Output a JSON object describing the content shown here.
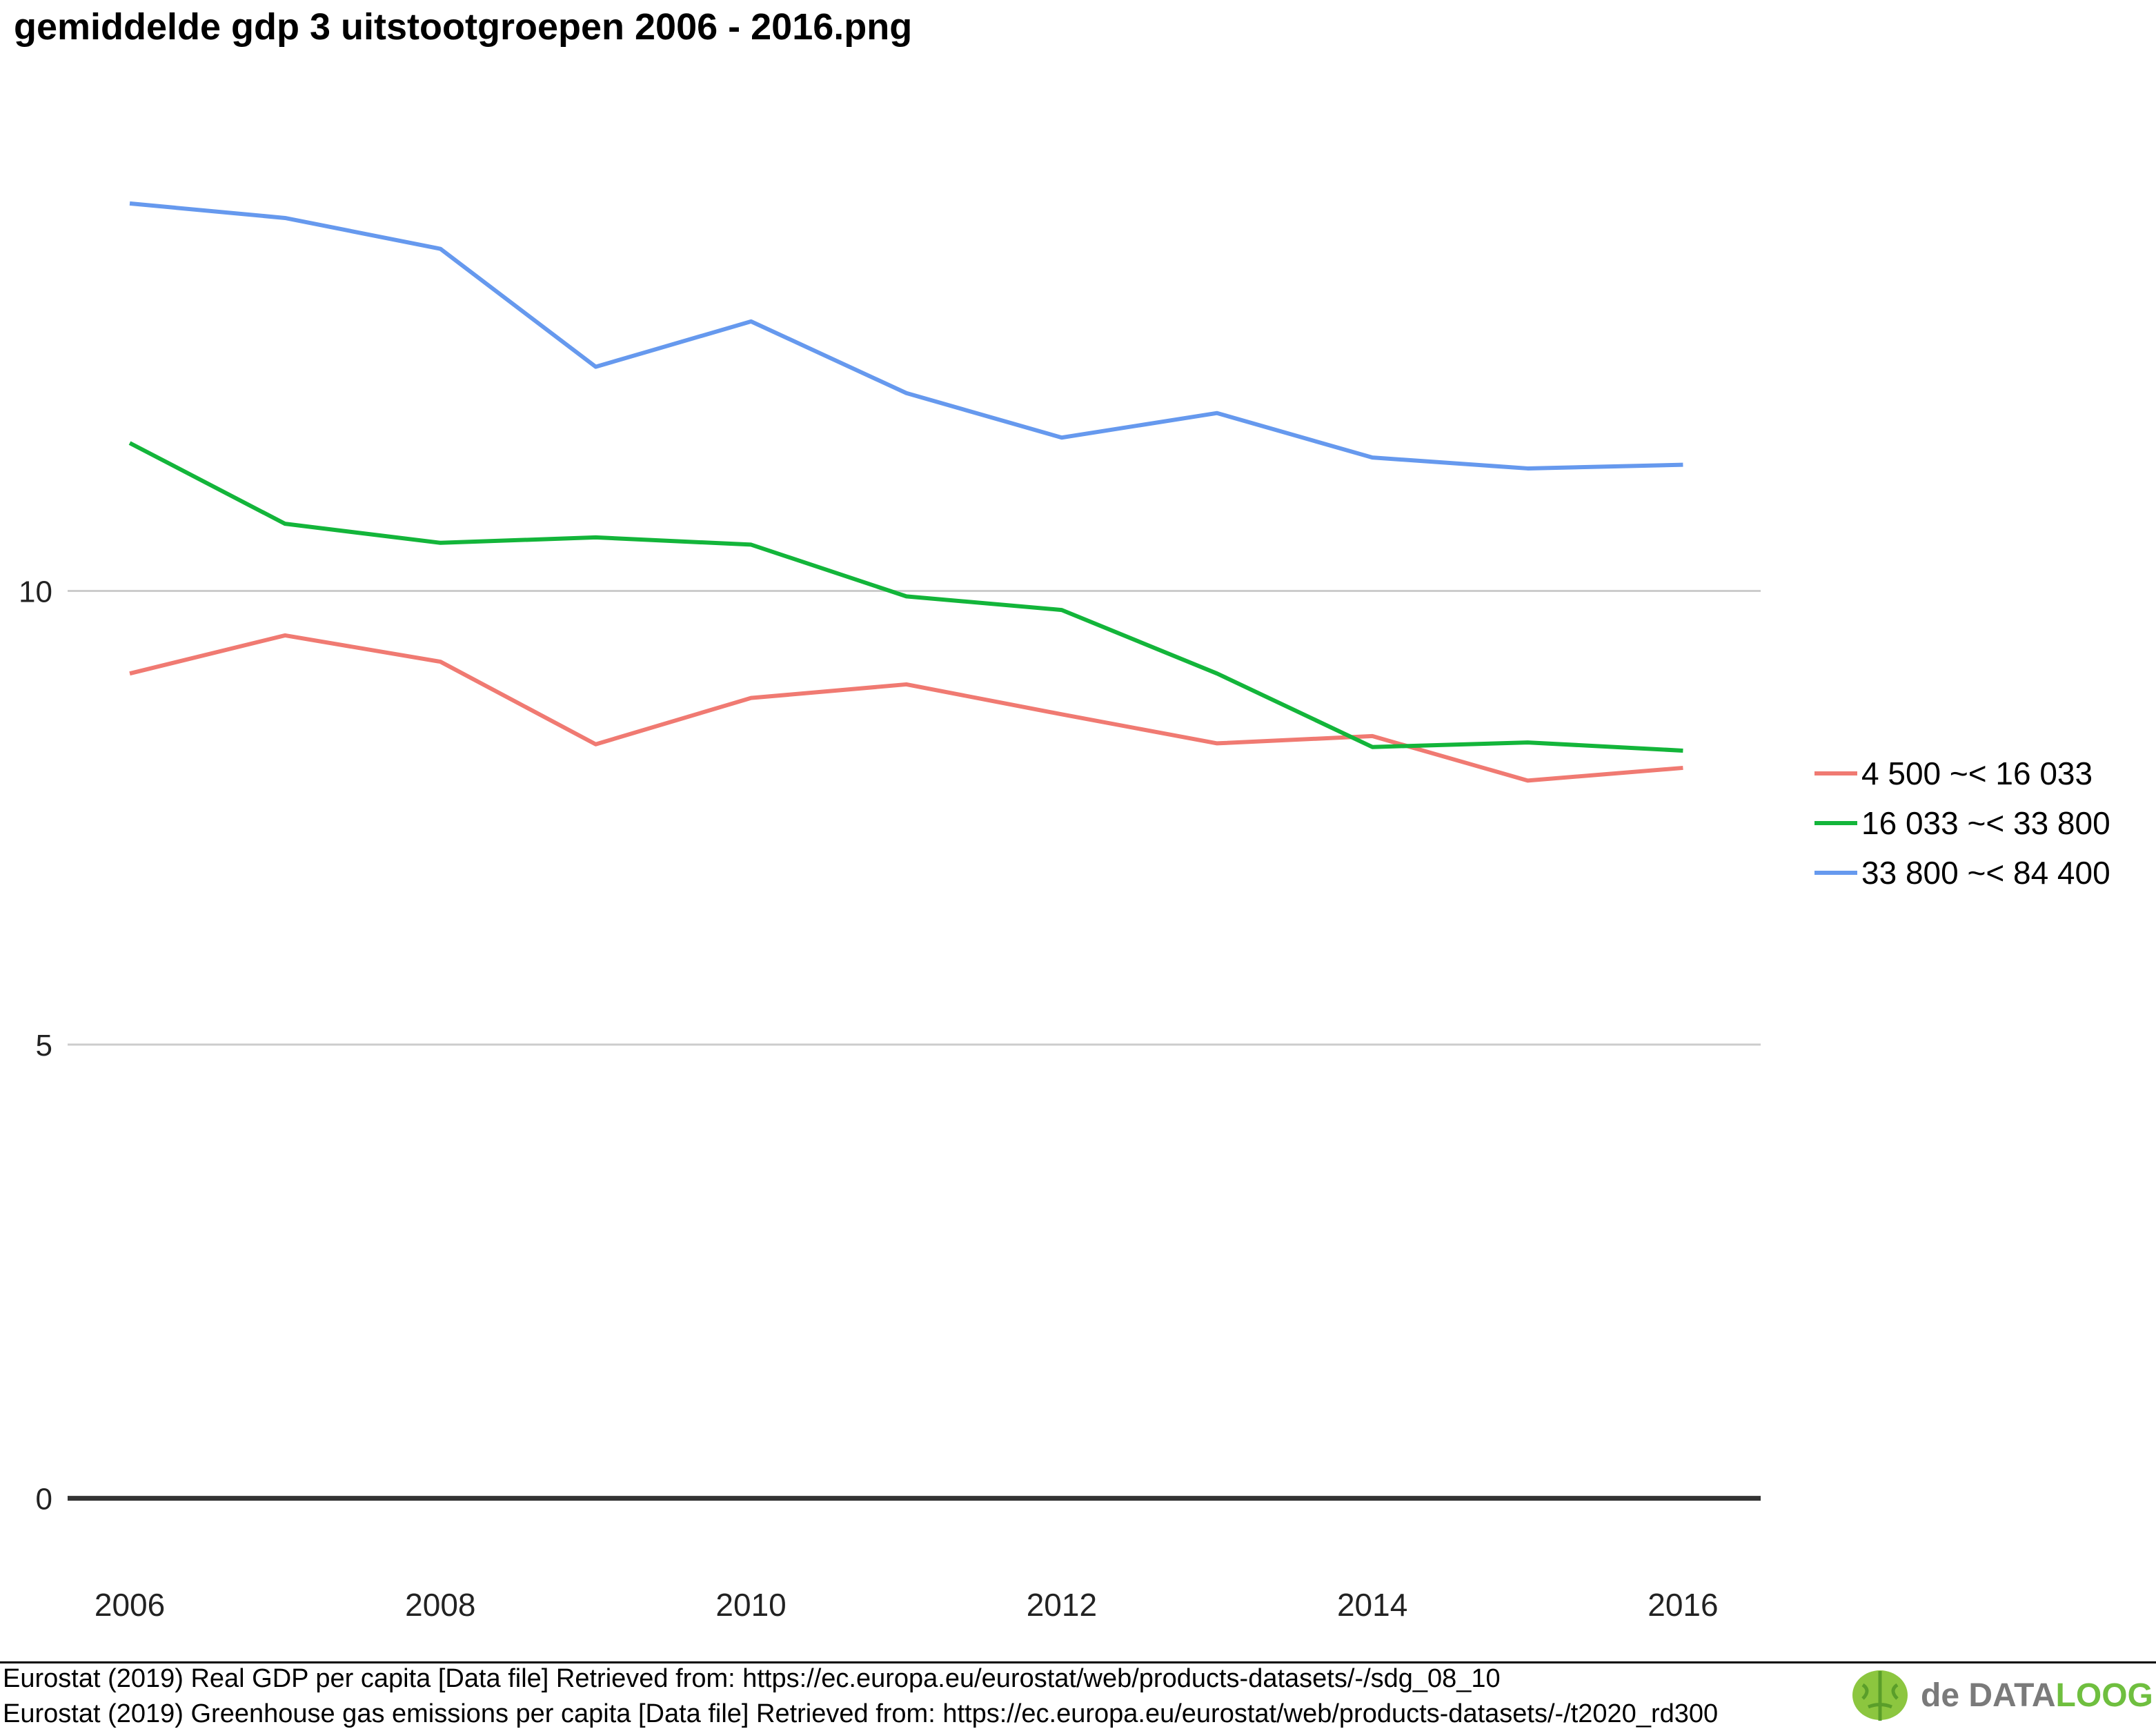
{
  "title": "gemiddelde gdp 3 uitstootgroepen 2006 - 2016.png",
  "chart_data": {
    "type": "line",
    "x": [
      2006,
      2007,
      2008,
      2009,
      2010,
      2011,
      2012,
      2013,
      2014,
      2015,
      2016
    ],
    "x_ticks": [
      "2006",
      "2008",
      "2010",
      "2012",
      "2014",
      "2016"
    ],
    "y_ticks": [
      "0",
      "5",
      "10"
    ],
    "ylim": [
      -0.9,
      15.6
    ],
    "xlim": [
      2005.6,
      2016.5
    ],
    "grid": true,
    "legend_position": "right",
    "series": [
      {
        "name": "4 500 ~< 16 033",
        "color": "#f07a72",
        "values": [
          9.09,
          9.51,
          9.22,
          8.31,
          8.82,
          8.97,
          8.64,
          8.32,
          8.4,
          7.91,
          8.05
        ]
      },
      {
        "name": "16 033 ~< 33 800",
        "color": "#13b53a",
        "values": [
          11.63,
          10.74,
          10.53,
          10.59,
          10.51,
          9.94,
          9.79,
          9.09,
          8.28,
          8.33,
          8.24
        ]
      },
      {
        "name": "33 800 ~< 84 400",
        "color": "#6699ee",
        "values": [
          14.27,
          14.11,
          13.77,
          12.47,
          12.97,
          12.18,
          11.69,
          11.96,
          11.47,
          11.35,
          11.39
        ]
      }
    ]
  },
  "sources": [
    "Eurostat (2019) Real GDP per capita [Data file] Retrieved from: https://ec.europa.eu/eurostat/web/products-datasets/-/sdg_08_10",
    "Eurostat (2019) Greenhouse gas emissions per capita [Data file] Retrieved from: https://ec.europa.eu/eurostat/web/products-datasets/-/t2020_rd300"
  ],
  "logo": {
    "prefix": "de ",
    "main": "DATA",
    "accent": "LOOG",
    "icon": "brain-icon"
  }
}
